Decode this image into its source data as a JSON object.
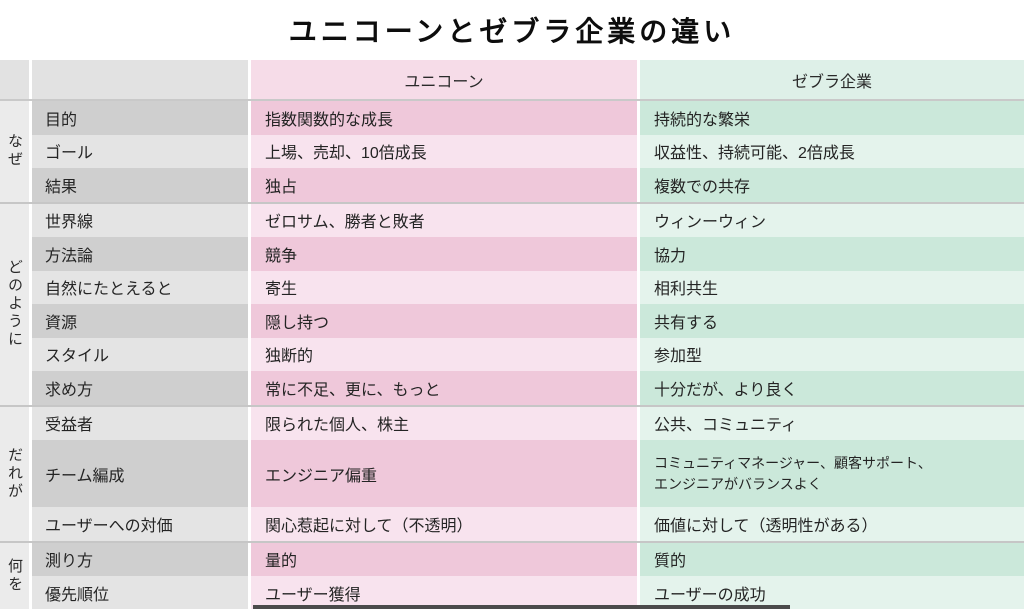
{
  "chart_data": {
    "type": "table",
    "title": "ユニコーンとゼブラ企業の違い",
    "columns": {
      "unicorn": "ユニコーン",
      "zebra": "ゼブラ企業"
    },
    "sections": [
      {
        "group": "なぜ",
        "rows": [
          {
            "label": "目的",
            "unicorn": "指数関数的な成長",
            "zebra": "持続的な繁栄"
          },
          {
            "label": "ゴール",
            "unicorn": "上場、売却、10倍成長",
            "zebra": "収益性、持続可能、2倍成長"
          },
          {
            "label": "結果",
            "unicorn": "独占",
            "zebra": "複数での共存"
          }
        ]
      },
      {
        "group": "どのように",
        "rows": [
          {
            "label": "世界線",
            "unicorn": "ゼロサム、勝者と敗者",
            "zebra": "ウィンーウィン"
          },
          {
            "label": "方法論",
            "unicorn": "競争",
            "zebra": "協力"
          },
          {
            "label": "自然にたとえると",
            "unicorn": "寄生",
            "zebra": "相利共生"
          },
          {
            "label": "資源",
            "unicorn": "隠し持つ",
            "zebra": "共有する"
          },
          {
            "label": "スタイル",
            "unicorn": "独断的",
            "zebra": "参加型"
          },
          {
            "label": "求め方",
            "unicorn": "常に不足、更に、もっと",
            "zebra": "十分だが、より良く"
          }
        ]
      },
      {
        "group": "だれが",
        "rows": [
          {
            "label": "受益者",
            "unicorn": "限られた個人、株主",
            "zebra": "公共、コミュニティ"
          },
          {
            "label": "チーム編成",
            "unicorn": "エンジニア偏重",
            "zebra": "コミュニティマネージャー、顧客サポート、\nエンジニアがバランスよく"
          },
          {
            "label": "ユーザーへの対価",
            "unicorn": "関心惹起に対して（不透明）",
            "zebra": "価値に対して（透明性がある）"
          }
        ]
      },
      {
        "group": "何を",
        "rows": [
          {
            "label": "測り方",
            "unicorn": "量的",
            "zebra": "質的"
          },
          {
            "label": "優先順位",
            "unicorn": "ユーザー獲得",
            "zebra": "ユーザーの成功"
          }
        ]
      }
    ]
  },
  "colors": {
    "unicorn_header_bg": "#f6dce8",
    "unicorn_row_dark": "#efc8da",
    "unicorn_row_light": "#f8e3ee",
    "zebra_header_bg": "#def0e8",
    "zebra_row_dark": "#cbe8da",
    "zebra_row_light": "#e4f3ec",
    "label_row_dark": "#cfcfcf",
    "label_row_light": "#e4e4e4",
    "group_col_bg": "#ebebeb",
    "header_gray_bg": "#e2e2e2"
  }
}
